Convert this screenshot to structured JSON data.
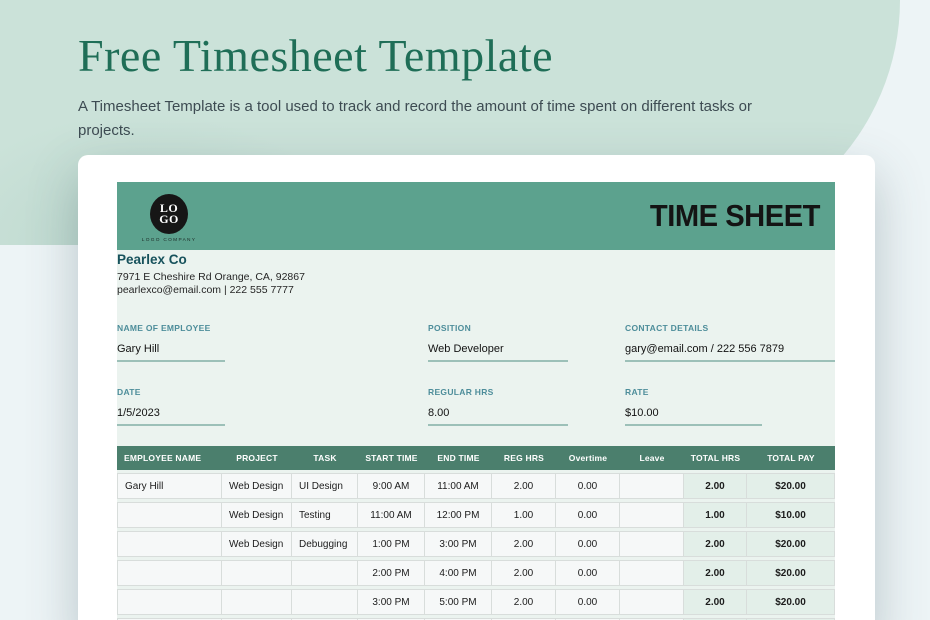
{
  "page": {
    "title": "Free Timesheet Template",
    "subtitle": "A Timesheet Template is a tool used to track and record the amount of time spent on different tasks or projects."
  },
  "sheet": {
    "logo": {
      "line1": "LO",
      "line2": "GO",
      "caption": "LOGO COMPANY"
    },
    "header_title": "TIME SHEET",
    "company": {
      "name": "Pearlex Co",
      "address": "7971 E Cheshire Rd Orange, CA, 92867",
      "contact": "pearlexco@email.com | 222 555 7777"
    },
    "fields": [
      {
        "label": "NAME OF EMPLOYEE",
        "value": "Gary Hill"
      },
      {
        "label": "POSITION",
        "value": "Web Developer"
      },
      {
        "label": "CONTACT DETAILS",
        "value": "gary@email.com / 222 556 7879"
      },
      {
        "label": "DATE",
        "value": "1/5/2023"
      },
      {
        "label": "REGULAR HRS",
        "value": "8.00"
      },
      {
        "label": "RATE",
        "value": "$10.00"
      }
    ],
    "table": {
      "columns": [
        "EMPLOYEE NAME",
        "PROJECT",
        "TASK",
        "START TIME",
        "END TIME",
        "REG HRS",
        "Overtime",
        "Leave",
        "TOTAL HRS",
        "TOTAL PAY"
      ],
      "rows": [
        [
          "Gary Hill",
          "Web Design",
          "UI Design",
          "9:00 AM",
          "11:00 AM",
          "2.00",
          "0.00",
          "",
          "2.00",
          "$20.00"
        ],
        [
          "",
          "Web Design",
          "Testing",
          "11:00 AM",
          "12:00 PM",
          "1.00",
          "0.00",
          "",
          "1.00",
          "$10.00"
        ],
        [
          "",
          "Web Design",
          "Debugging",
          "1:00 PM",
          "3:00 PM",
          "2.00",
          "0.00",
          "",
          "2.00",
          "$20.00"
        ],
        [
          "",
          "",
          "",
          "2:00 PM",
          "4:00 PM",
          "2.00",
          "0.00",
          "",
          "2.00",
          "$20.00"
        ],
        [
          "",
          "",
          "",
          "3:00 PM",
          "5:00 PM",
          "2.00",
          "0.00",
          "",
          "2.00",
          "$20.00"
        ],
        [
          "",
          "",
          "",
          "",
          "",
          "",
          "",
          "",
          "",
          ""
        ]
      ]
    }
  },
  "colors": {
    "mint_background": "#cbe2d9",
    "page_background": "#edf4f6",
    "title_green": "#1f6e57",
    "sheet_header_green": "#5ca28e",
    "table_header_green": "#4b7f6d",
    "label_teal": "#4d8d9a",
    "company_teal": "#17525c",
    "underline_teal": "#9cc0b8",
    "total_cell_mint": "#e3efe9"
  }
}
